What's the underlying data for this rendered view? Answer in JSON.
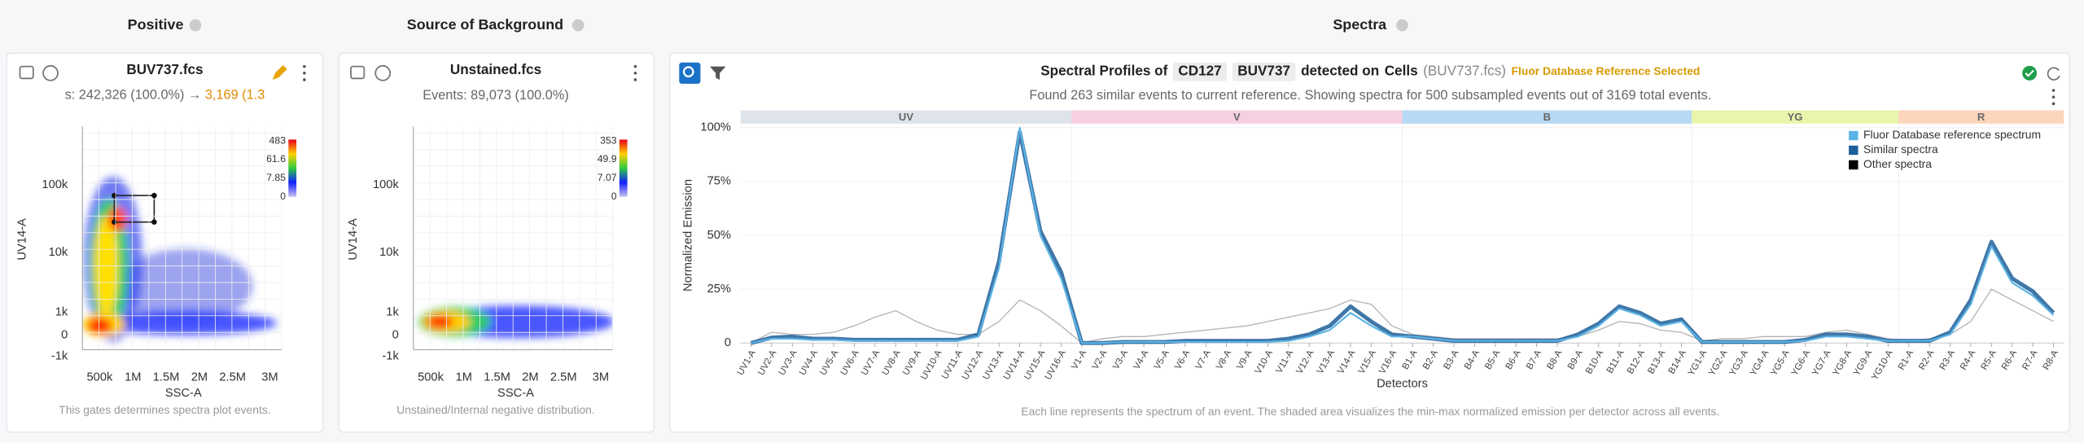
{
  "sections": [
    "Positive",
    "Source of Background",
    "Spectra"
  ],
  "positive": {
    "file": "BUV737.fcs",
    "stats": "s: 242,326 (100.0%) → ",
    "gated": "3,169 (1.3",
    "x_label": "SSC-A",
    "y_label": "UV14-A",
    "xticks": [
      "500k",
      "1M",
      "1.5M",
      "2M",
      "2.5M",
      "3M"
    ],
    "yticks": [
      "100k",
      "10k",
      "1k",
      "0",
      "-1k"
    ],
    "colorbar": [
      "483",
      "61.6",
      "7.85",
      "0"
    ],
    "footer": "This gates determines spectra plot events."
  },
  "background": {
    "file": "Unstained.fcs",
    "stats": "Events: 89,073 (100.0%)",
    "x_label": "SSC-A",
    "y_label": "UV14-A",
    "xticks": [
      "500k",
      "1M",
      "1.5M",
      "2M",
      "2.5M",
      "3M"
    ],
    "yticks": [
      "100k",
      "10k",
      "1k",
      "0",
      "-1k"
    ],
    "colorbar": [
      "353",
      "49.9",
      "7.07",
      "0"
    ],
    "footer": "Unstained/Internal negative distribution."
  },
  "spectra": {
    "title": [
      "Spectral Profiles of",
      "CD127",
      "BUV737",
      "detected on",
      "Cells",
      "(BUV737.fcs)"
    ],
    "badge": "Fluor Database Reference Selected",
    "subtitle": "Found 263 similar events to current reference. Showing spectra for 500 subsampled events out of 3169 total events.",
    "footer": "Each line represents the spectrum of an event. The shaded area visualizes the min-max normalized emission per detector across all events."
  },
  "chart_data": {
    "type": "line",
    "x_label": "Detectors",
    "y_label": "Normalized Emission",
    "groups": [
      {
        "label": "UV",
        "color": "#dfe3ea"
      },
      {
        "label": "V",
        "color": "#f6cfe1"
      },
      {
        "label": "B",
        "color": "#b7d9f5"
      },
      {
        "label": "YG",
        "color": "#e8f5ab"
      },
      {
        "label": "R",
        "color": "#fcd5ba"
      }
    ],
    "categories": [
      "UV1-A",
      "UV2-A",
      "UV3-A",
      "UV4-A",
      "UV5-A",
      "UV6-A",
      "UV7-A",
      "UV8-A",
      "UV9-A",
      "UV10-A",
      "UV11-A",
      "UV12-A",
      "UV13-A",
      "UV14-A",
      "UV15-A",
      "UV16-A",
      "V1-A",
      "V2-A",
      "V3-A",
      "V4-A",
      "V5-A",
      "V6-A",
      "V7-A",
      "V8-A",
      "V9-A",
      "V10-A",
      "V11-A",
      "V12-A",
      "V13-A",
      "V14-A",
      "V15-A",
      "V16-A",
      "B1-A",
      "B2-A",
      "B3-A",
      "B4-A",
      "B5-A",
      "B6-A",
      "B7-A",
      "B8-A",
      "B9-A",
      "B10-A",
      "B11-A",
      "B12-A",
      "B13-A",
      "B14-A",
      "YG1-A",
      "YG2-A",
      "YG3-A",
      "YG4-A",
      "YG5-A",
      "YG6-A",
      "YG7-A",
      "YG8-A",
      "YG9-A",
      "YG10-A",
      "R1-A",
      "R2-A",
      "R3-A",
      "R4-A",
      "R5-A",
      "R6-A",
      "R7-A",
      "R8-A"
    ],
    "series": [
      {
        "name": "Fluor Database reference spectrum",
        "color": "#5ab4e5",
        "values": [
          0,
          2,
          2,
          1.5,
          1.5,
          1,
          1,
          1,
          1,
          1,
          1,
          3,
          35,
          100,
          50,
          30,
          0,
          0,
          0.5,
          0.5,
          0.5,
          0.5,
          0.5,
          0.5,
          0.5,
          0.5,
          1,
          3,
          6,
          14,
          8,
          3,
          3,
          2,
          1,
          1,
          1,
          1,
          1,
          1,
          3,
          8,
          16,
          13,
          8,
          10,
          0.5,
          0.5,
          0.5,
          0.5,
          0.5,
          1,
          3,
          3,
          2,
          1,
          1,
          1,
          4,
          18,
          45,
          28,
          22,
          13
        ]
      },
      {
        "name": "Similar spectra",
        "color": "#1f5f99",
        "values": [
          0,
          2.5,
          3,
          2,
          2,
          1.5,
          1.5,
          1.5,
          1.5,
          1.5,
          1.5,
          4,
          38,
          98,
          52,
          33,
          0,
          0,
          0.5,
          0.5,
          0.5,
          1,
          1,
          1,
          1,
          1,
          2,
          4,
          8,
          17,
          10,
          4,
          3,
          2,
          1,
          1,
          1,
          1,
          1,
          1,
          4,
          9,
          17,
          14,
          9,
          11,
          0.5,
          0.5,
          0.5,
          0.5,
          0.5,
          1.5,
          4,
          4,
          3,
          1,
          1,
          1,
          5,
          20,
          47,
          30,
          24,
          14
        ]
      },
      {
        "name": "Other spectra",
        "color": "#000000",
        "values": [
          0,
          5,
          4,
          4,
          5,
          8,
          12,
          15,
          10,
          6,
          4,
          4,
          10,
          20,
          15,
          8,
          0,
          2,
          3,
          3,
          4,
          5,
          6,
          7,
          8,
          10,
          12,
          14,
          16,
          20,
          18,
          8,
          4,
          3,
          2,
          2,
          2,
          2,
          2,
          2,
          3,
          6,
          10,
          9,
          6,
          5,
          1,
          2,
          2,
          3,
          3,
          3,
          5,
          6,
          4,
          2,
          1,
          2,
          4,
          10,
          25,
          20,
          15,
          10
        ]
      }
    ],
    "ylim": [
      0,
      100
    ],
    "yticks": [
      0,
      {
        "value": 25,
        "label": "25%"
      },
      {
        "value": 50,
        "label": "50%"
      },
      {
        "value": 75,
        "label": "75%"
      },
      {
        "value": 100,
        "label": "100%"
      }
    ],
    "legend": "upper right"
  }
}
